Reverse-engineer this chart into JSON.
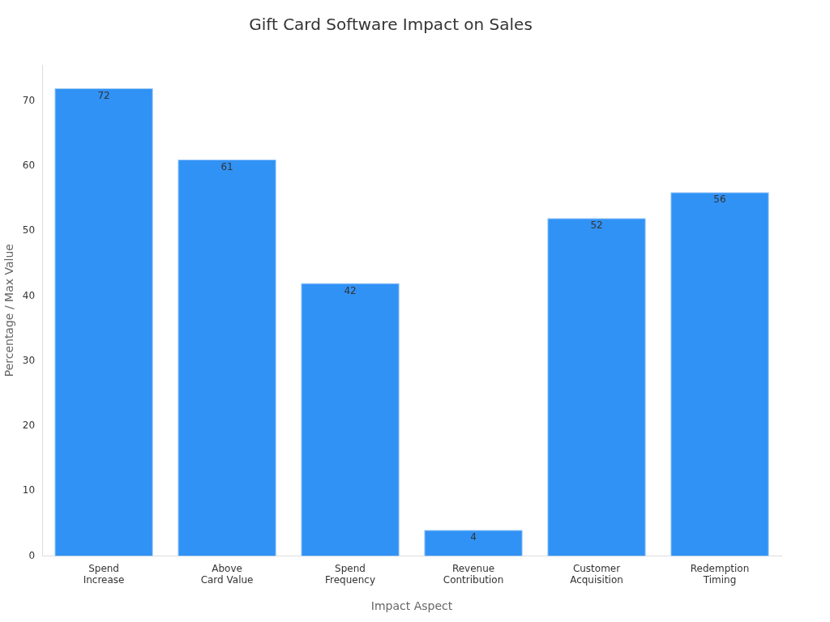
{
  "chart_data": {
    "type": "bar",
    "title": "Gift Card Software Impact on Sales",
    "xlabel": "Impact Aspect",
    "ylabel": "Percentage / Max Value",
    "categories": [
      "Spend Increase",
      "Above Card Value",
      "Spend Frequency",
      "Revenue Contribution",
      "Customer Acquisition",
      "Redemption Timing"
    ],
    "values": [
      72,
      61,
      42,
      4,
      52,
      56
    ],
    "color": "#3192f5",
    "ylim": [
      0,
      75.6
    ],
    "yticks": [
      0,
      10,
      20,
      30,
      40,
      50,
      60,
      70
    ],
    "grid": false,
    "legend": false,
    "data_labels": true
  }
}
